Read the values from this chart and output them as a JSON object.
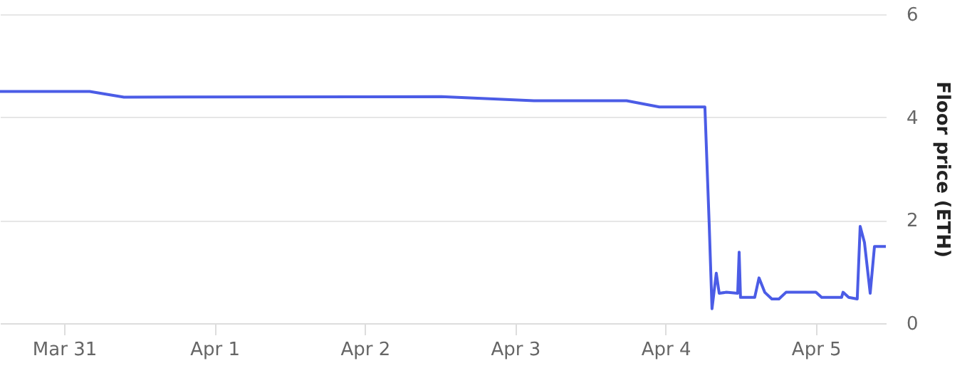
{
  "chart_data": {
    "type": "line",
    "ylabel": "Floor price (ETH)",
    "x": [
      "--03-30T13:46",
      "--03-31T04:05",
      "--03-31T09:33",
      "--04-02T12:14",
      "--04-03T03:00",
      "--04-03T17:47",
      "--04-03T23:01",
      "--04-04T06:17",
      "--04-04T06:58",
      "--04-04T07:25",
      "--04-04T08:06",
      "--04-04T08:34",
      "--04-04T09:42",
      "--04-04T11:31",
      "--04-04T11:45",
      "--04-04T11:58",
      "--04-04T14:14",
      "--04-04T14:55",
      "--04-04T15:50",
      "--04-04T16:58",
      "--04-04T18:06",
      "--04-04T19:14",
      "--04-05T00:00",
      "--04-05T00:55",
      "--04-05T04:06",
      "--04-05T04:20",
      "--04-05T05:14",
      "--04-05T06:36",
      "--04-05T07:04",
      "--04-05T07:45",
      "--04-05T08:40",
      "--04-05T09:21",
      "--04-05T11:10"
    ],
    "series": [
      {
        "color": "#4b5ce6",
        "values": [
          4.5,
          4.5,
          4.39,
          4.4,
          4.32,
          4.32,
          4.2,
          4.2,
          1.93,
          0.28,
          0.97,
          0.58,
          0.6,
          0.58,
          1.38,
          0.5,
          0.5,
          0.88,
          0.6,
          0.47,
          0.47,
          0.6,
          0.6,
          0.5,
          0.5,
          0.6,
          0.5,
          0.47,
          1.88,
          1.57,
          0.58,
          1.49,
          1.49
        ]
      }
    ],
    "xlim": [
      "--03-30T13:46",
      "--04-05T11:10"
    ],
    "xticks": [
      {
        "value": "--03-31",
        "label": "Mar 31"
      },
      {
        "value": "--04-01",
        "label": "Apr 1"
      },
      {
        "value": "--04-02",
        "label": "Apr 2"
      },
      {
        "value": "--04-03",
        "label": "Apr 3"
      },
      {
        "value": "--04-04",
        "label": "Apr 4"
      },
      {
        "value": "--04-05",
        "label": "Apr 5"
      }
    ],
    "ylim": [
      0,
      6
    ],
    "yticks": [
      0,
      2,
      4,
      6
    ],
    "grid": "y",
    "marker": "none",
    "line_style": "solid"
  }
}
